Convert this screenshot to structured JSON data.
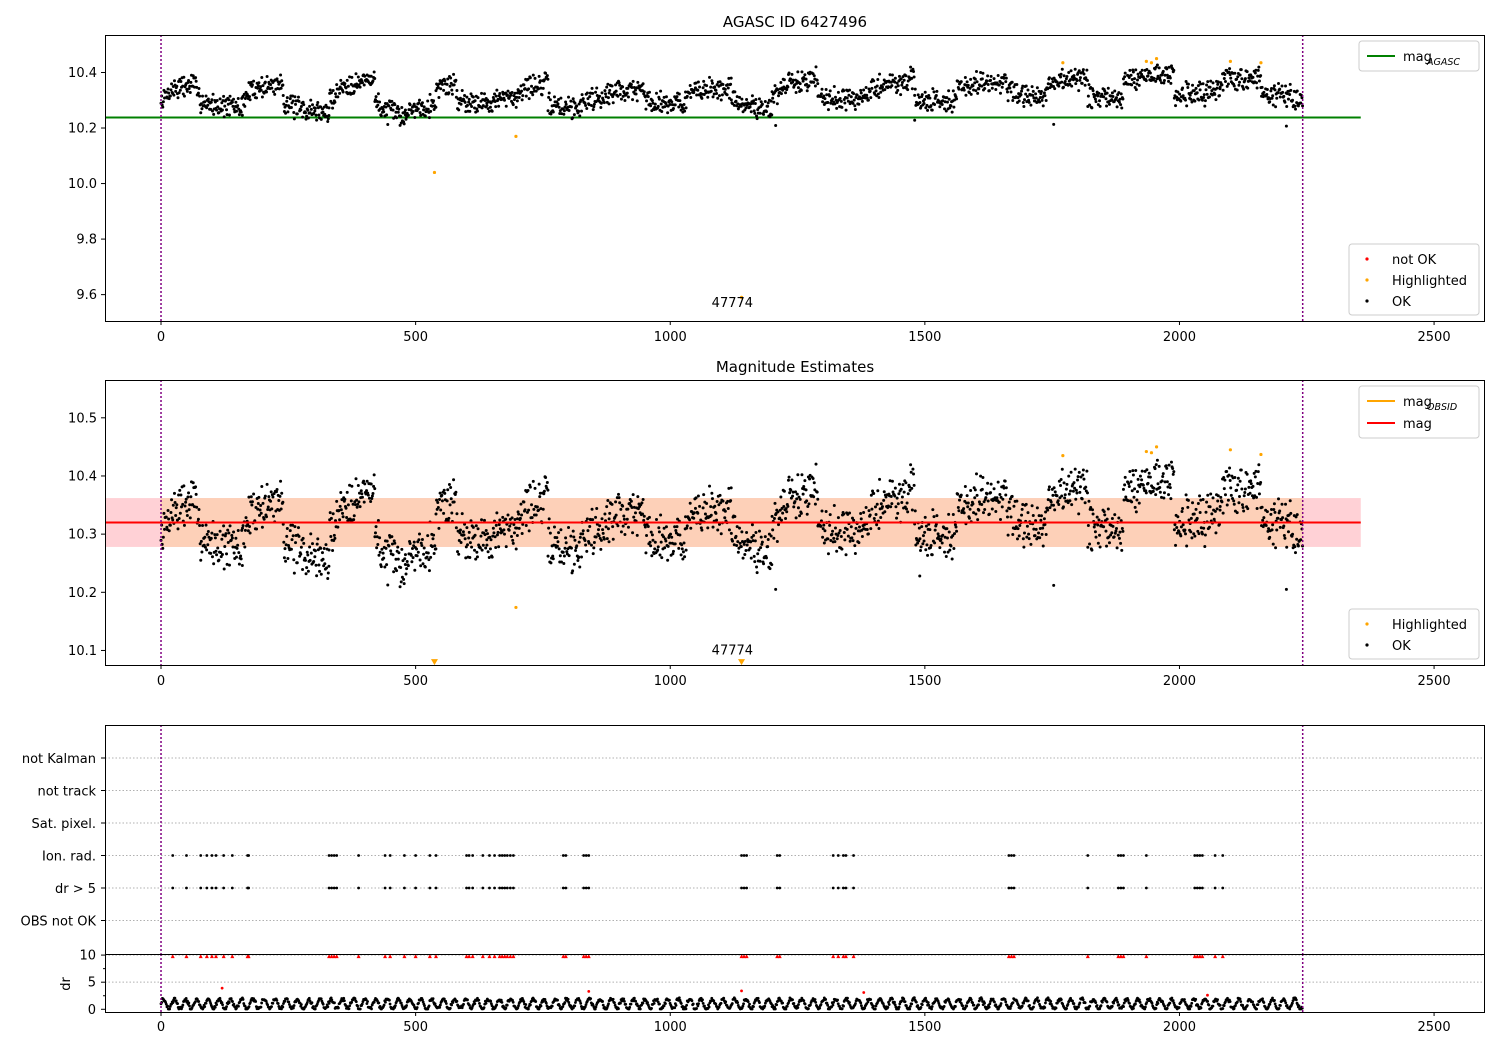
{
  "chart_data": [
    {
      "type": "scatter",
      "title": "AGASC ID 6427496",
      "xlabel": "",
      "ylabel": "",
      "xlim": [
        -110,
        2600
      ],
      "ylim": [
        9.505,
        10.535
      ],
      "xticks": [
        0,
        500,
        1000,
        1500,
        2000,
        2500
      ],
      "xtick_labels": [
        "0",
        "500",
        "1000",
        "1500",
        "2000",
        "2500"
      ],
      "yticks": [
        9.6,
        9.8,
        10.0,
        10.2,
        10.4
      ],
      "ytick_labels": [
        "9.6",
        "9.8",
        "10.0",
        "10.2",
        "10.4"
      ],
      "vlines": [
        0,
        2242
      ],
      "hline": {
        "y": 10.238,
        "x_range": [
          -110,
          2356
        ],
        "color": "#008000",
        "name": "mag_AGASC"
      },
      "legend_top": {
        "placement": "top-right",
        "entries": [
          {
            "label": "mag",
            "sub": "AGASC",
            "color": "#008000",
            "kind": "line"
          }
        ]
      },
      "legend_bottom": {
        "placement": "bottom-right",
        "entries": [
          {
            "label": "not OK",
            "color": "#ff0000",
            "kind": "dot"
          },
          {
            "label": "Highlighted",
            "color": "#ffa500",
            "kind": "dot"
          },
          {
            "label": "OK",
            "color": "#000000",
            "kind": "dot"
          }
        ]
      },
      "annotations": [
        {
          "text": "47774",
          "x": 1122,
          "y": 9.555
        }
      ],
      "highlighted_points": [
        [
          537,
          10.04
        ],
        [
          697,
          10.17
        ],
        [
          1140,
          9.59
        ],
        [
          1771,
          10.435
        ],
        [
          1935,
          10.44
        ],
        [
          1945,
          10.435
        ],
        [
          1955,
          10.45
        ],
        [
          2100,
          10.44
        ],
        [
          2160,
          10.435
        ]
      ],
      "ok_series": {
        "x_range": [
          0,
          2242
        ],
        "baseline": 10.32,
        "extra_points": [
          [
            1207,
            10.209
          ],
          [
            1753,
            10.213
          ],
          [
            2210,
            10.207
          ],
          [
            1480,
            10.228
          ]
        ],
        "segments": [
          [
            0,
            70,
            10.29,
            10.37
          ],
          [
            70,
            160,
            10.31,
            10.27
          ],
          [
            160,
            240,
            10.3,
            10.37
          ],
          [
            240,
            330,
            10.3,
            10.25
          ],
          [
            330,
            420,
            10.29,
            10.39
          ],
          [
            420,
            480,
            10.3,
            10.24
          ],
          [
            480,
            540,
            10.25,
            10.29
          ],
          [
            540,
            580,
            10.34,
            10.36
          ],
          [
            580,
            640,
            10.31,
            10.29
          ],
          [
            640,
            700,
            10.29,
            10.31
          ],
          [
            700,
            760,
            10.33,
            10.36
          ],
          [
            760,
            820,
            10.29,
            10.27
          ],
          [
            820,
            880,
            10.28,
            10.32
          ],
          [
            880,
            950,
            10.33,
            10.34
          ],
          [
            950,
            1030,
            10.3,
            10.29
          ],
          [
            1030,
            1120,
            10.31,
            10.35
          ],
          [
            1120,
            1200,
            10.3,
            10.27
          ],
          [
            1200,
            1290,
            10.3,
            10.39
          ],
          [
            1290,
            1380,
            10.32,
            10.3
          ],
          [
            1380,
            1480,
            10.31,
            10.38
          ],
          [
            1480,
            1560,
            10.3,
            10.3
          ],
          [
            1560,
            1660,
            10.33,
            10.37
          ],
          [
            1660,
            1740,
            10.34,
            10.3
          ],
          [
            1740,
            1820,
            10.36,
            10.38
          ],
          [
            1820,
            1890,
            10.31,
            10.31
          ],
          [
            1890,
            1990,
            10.36,
            10.4
          ],
          [
            1990,
            2080,
            10.31,
            10.33
          ],
          [
            2080,
            2160,
            10.37,
            10.38
          ],
          [
            2160,
            2242,
            10.33,
            10.31
          ]
        ]
      }
    },
    {
      "type": "scatter",
      "title": "Magnitude Estimates",
      "xlabel": "",
      "ylabel": "",
      "xlim": [
        -110,
        2600
      ],
      "ylim": [
        10.075,
        10.565
      ],
      "xticks": [
        0,
        500,
        1000,
        1500,
        2000,
        2500
      ],
      "xtick_labels": [
        "0",
        "500",
        "1000",
        "1500",
        "2000",
        "2500"
      ],
      "yticks": [
        10.1,
        10.2,
        10.3,
        10.4,
        10.5
      ],
      "ytick_labels": [
        "10.1",
        "10.2",
        "10.3",
        "10.4",
        "10.5"
      ],
      "vlines": [
        0,
        2242
      ],
      "hline": {
        "y": 10.32,
        "x_range": [
          -110,
          2356
        ],
        "color": "#ff0000",
        "name": "mag"
      },
      "bands": [
        {
          "y": [
            10.278,
            10.362
          ],
          "x_range": [
            -110,
            2356
          ],
          "color": "#ffd1d6"
        },
        {
          "y": [
            10.278,
            10.362
          ],
          "x_range": [
            0,
            2242
          ],
          "color": "#fdd0b8"
        }
      ],
      "legend_top": {
        "placement": "top-right",
        "entries": [
          {
            "label": "mag",
            "sub": "OBSID",
            "color": "#ffa500",
            "kind": "line"
          },
          {
            "label": "mag",
            "sub": "",
            "color": "#ff0000",
            "kind": "line"
          }
        ]
      },
      "legend_bottom": {
        "placement": "bottom-right",
        "entries": [
          {
            "label": "Highlighted",
            "color": "#ffa500",
            "kind": "dot"
          },
          {
            "label": "OK",
            "color": "#000000",
            "kind": "dot"
          }
        ]
      },
      "annotations": [
        {
          "text": "47774",
          "x": 1122,
          "y": 10.093
        }
      ],
      "highlighted_points": [
        [
          697,
          10.174
        ],
        [
          1771,
          10.435
        ],
        [
          1935,
          10.442
        ],
        [
          1945,
          10.44
        ],
        [
          1955,
          10.45
        ],
        [
          2100,
          10.445
        ],
        [
          2160,
          10.437
        ]
      ],
      "down_markers": [
        [
          537,
          10.08
        ],
        [
          1140,
          10.08
        ]
      ],
      "ok_series": {
        "x_range": [
          0,
          2242
        ],
        "baseline": 10.32,
        "extra_points": [
          [
            1207,
            10.205
          ],
          [
            1753,
            10.212
          ],
          [
            2210,
            10.205
          ],
          [
            1490,
            10.228
          ]
        ],
        "segments": [
          [
            0,
            70,
            10.29,
            10.37
          ],
          [
            70,
            160,
            10.31,
            10.27
          ],
          [
            160,
            240,
            10.3,
            10.37
          ],
          [
            240,
            330,
            10.3,
            10.25
          ],
          [
            330,
            420,
            10.29,
            10.39
          ],
          [
            420,
            480,
            10.3,
            10.24
          ],
          [
            480,
            540,
            10.25,
            10.29
          ],
          [
            540,
            580,
            10.34,
            10.36
          ],
          [
            580,
            640,
            10.31,
            10.29
          ],
          [
            640,
            700,
            10.29,
            10.31
          ],
          [
            700,
            760,
            10.33,
            10.36
          ],
          [
            760,
            820,
            10.29,
            10.27
          ],
          [
            820,
            880,
            10.28,
            10.32
          ],
          [
            880,
            950,
            10.33,
            10.34
          ],
          [
            950,
            1030,
            10.3,
            10.29
          ],
          [
            1030,
            1120,
            10.31,
            10.35
          ],
          [
            1120,
            1200,
            10.3,
            10.27
          ],
          [
            1200,
            1290,
            10.3,
            10.39
          ],
          [
            1290,
            1380,
            10.32,
            10.3
          ],
          [
            1380,
            1480,
            10.31,
            10.38
          ],
          [
            1480,
            1560,
            10.3,
            10.3
          ],
          [
            1560,
            1660,
            10.33,
            10.37
          ],
          [
            1660,
            1740,
            10.34,
            10.3
          ],
          [
            1740,
            1820,
            10.36,
            10.38
          ],
          [
            1820,
            1890,
            10.31,
            10.31
          ],
          [
            1890,
            1990,
            10.36,
            10.4
          ],
          [
            1990,
            2080,
            10.31,
            10.33
          ],
          [
            2080,
            2160,
            10.37,
            10.38
          ],
          [
            2160,
            2242,
            10.33,
            10.31
          ]
        ]
      }
    },
    {
      "type": "scatter",
      "title": "",
      "xlabel": "",
      "ylabel": "",
      "xlim": [
        -110,
        2600
      ],
      "vlines": [
        0,
        2242
      ],
      "categories": [
        "not Kalman",
        "not track",
        "Sat. pixel.",
        "Ion. rad.",
        "dr > 5",
        "OBS not OK"
      ],
      "flag_points": {
        "Ion. rad.": [
          23,
          50,
          78,
          90,
          100,
          108,
          123,
          140,
          170,
          172,
          330,
          335,
          340,
          345,
          388,
          440,
          450,
          478,
          500,
          528,
          540,
          600,
          605,
          612,
          632,
          645,
          655,
          665,
          670,
          675,
          680,
          686,
          692,
          790,
          795,
          830,
          835,
          840,
          1140,
          1145,
          1150,
          1210,
          1215,
          1320,
          1330,
          1340,
          1345,
          1360,
          1665,
          1670,
          1675,
          1820,
          1880,
          1885,
          1890,
          1935,
          2030,
          2035,
          2040,
          2045,
          2070,
          2085
        ],
        "dr > 5": [
          23,
          50,
          78,
          90,
          100,
          108,
          123,
          140,
          170,
          172,
          330,
          335,
          340,
          345,
          388,
          440,
          450,
          478,
          500,
          528,
          540,
          600,
          605,
          612,
          632,
          645,
          655,
          665,
          670,
          675,
          680,
          686,
          692,
          790,
          795,
          830,
          835,
          840,
          1140,
          1145,
          1150,
          1210,
          1215,
          1320,
          1330,
          1340,
          1345,
          1360,
          1665,
          1670,
          1675,
          1820,
          1880,
          1885,
          1890,
          1935,
          2030,
          2035,
          2040,
          2045,
          2070,
          2085
        ]
      }
    },
    {
      "type": "scatter",
      "title": "",
      "xlabel": "",
      "ylabel": "dr",
      "xlim": [
        -110,
        2600
      ],
      "ylim": [
        -0.5,
        10.2
      ],
      "yticks": [
        0,
        5,
        10
      ],
      "ytick_labels": [
        "0",
        "5",
        "10"
      ],
      "vlines": [
        0,
        2242
      ],
      "clipped_markers_at": 9.8,
      "clipped_x": [
        23,
        50,
        78,
        90,
        100,
        108,
        123,
        140,
        170,
        172,
        330,
        335,
        340,
        345,
        388,
        440,
        450,
        478,
        500,
        528,
        540,
        600,
        605,
        612,
        632,
        645,
        655,
        665,
        670,
        675,
        680,
        686,
        692,
        790,
        795,
        830,
        835,
        840,
        1140,
        1145,
        1150,
        1210,
        1215,
        1320,
        1330,
        1340,
        1345,
        1360,
        1665,
        1670,
        1675,
        1820,
        1880,
        1885,
        1890,
        1935,
        2030,
        2035,
        2040,
        2045,
        2070,
        2085
      ],
      "red_points": [
        [
          120,
          3.9
        ],
        [
          840,
          3.3
        ],
        [
          1140,
          3.4
        ],
        [
          1380,
          3.1
        ],
        [
          2055,
          2.6
        ]
      ],
      "ok_series": {
        "x_range": [
          0,
          2242
        ],
        "amplitude": 1.0,
        "baseline": 1.0,
        "period": 22
      }
    }
  ],
  "colors": {
    "ok": "#000000",
    "not_ok": "#ff0000",
    "highlighted": "#ffa500",
    "vline": "#800080",
    "grid": "#b0b0b0"
  }
}
